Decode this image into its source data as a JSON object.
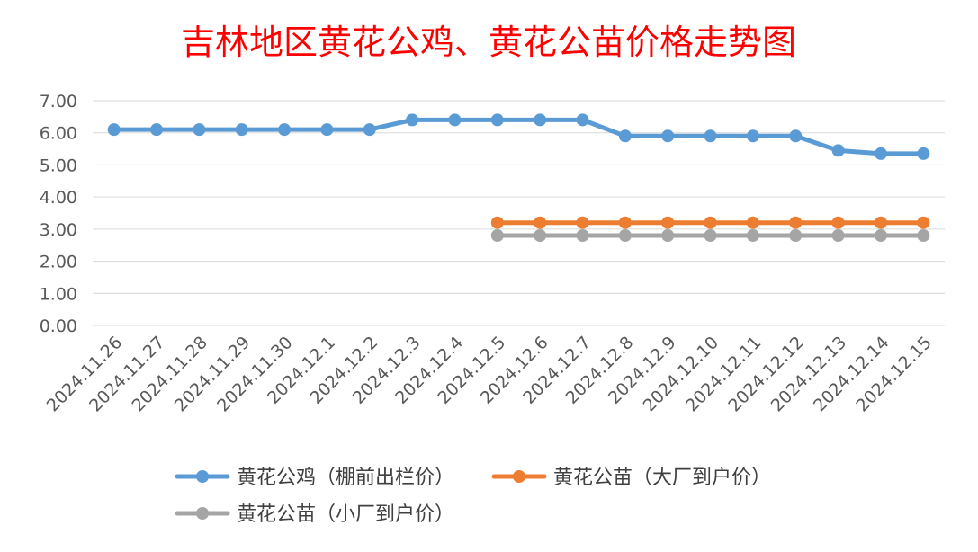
{
  "chart_data": {
    "type": "line",
    "title": "吉林地区黄花公鸡、黄花公苗价格走势图",
    "xlabel": "",
    "ylabel": "",
    "ylim": [
      0,
      7
    ],
    "yticks": [
      "0.00",
      "1.00",
      "2.00",
      "3.00",
      "4.00",
      "5.00",
      "6.00",
      "7.00"
    ],
    "grid": true,
    "legend_position": "bottom",
    "categories": [
      "2024.11.26",
      "2024.11.27",
      "2024.11.28",
      "2024.11.29",
      "2024.11.30",
      "2024.12.1",
      "2024.12.2",
      "2024.12.3",
      "2024.12.4",
      "2024.12.5",
      "2024.12.6",
      "2024.12.7",
      "2024.12.8",
      "2024.12.9",
      "2024.12.10",
      "2024.12.11",
      "2024.12.12",
      "2024.12.13",
      "2024.12.14",
      "2024.12.15"
    ],
    "series": [
      {
        "name": "黄花公鸡（棚前出栏价）",
        "color": "#5b9bd5",
        "values": [
          6.1,
          6.1,
          6.1,
          6.1,
          6.1,
          6.1,
          6.1,
          6.4,
          6.4,
          6.4,
          6.4,
          6.4,
          5.9,
          5.9,
          5.9,
          5.9,
          5.9,
          5.45,
          5.35,
          5.35
        ]
      },
      {
        "name": "黄花公苗（大厂到户价）",
        "color": "#ed7d31",
        "values": [
          null,
          null,
          null,
          null,
          null,
          null,
          null,
          null,
          null,
          3.2,
          3.2,
          3.2,
          3.2,
          3.2,
          3.2,
          3.2,
          3.2,
          3.2,
          3.2,
          3.2
        ]
      },
      {
        "name": "黄花公苗（小厂到户价）",
        "color": "#a5a5a5",
        "values": [
          null,
          null,
          null,
          null,
          null,
          null,
          null,
          null,
          null,
          2.8,
          2.8,
          2.8,
          2.8,
          2.8,
          2.8,
          2.8,
          2.8,
          2.8,
          2.8,
          2.8
        ]
      }
    ]
  }
}
